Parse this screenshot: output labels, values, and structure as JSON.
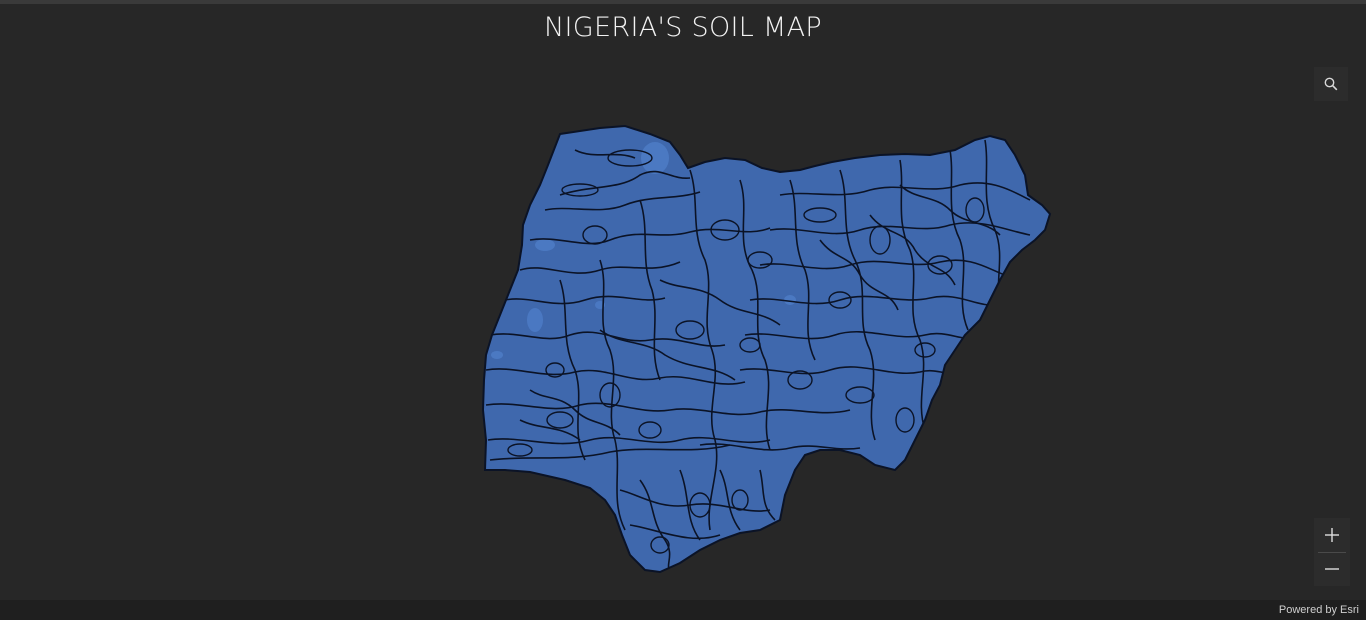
{
  "header": {
    "title": "NIGERIA'S SOIL MAP"
  },
  "map": {
    "country": "Nigeria",
    "fill_color": "#3f68ad",
    "boundary_color": "#0b1326",
    "background_color": "#272727"
  },
  "widgets": {
    "search": {
      "icon": "search-icon"
    },
    "zoom_in": {
      "icon": "plus-icon"
    },
    "zoom_out": {
      "icon": "minus-icon"
    }
  },
  "footer": {
    "attribution": "Powered by Esri"
  }
}
